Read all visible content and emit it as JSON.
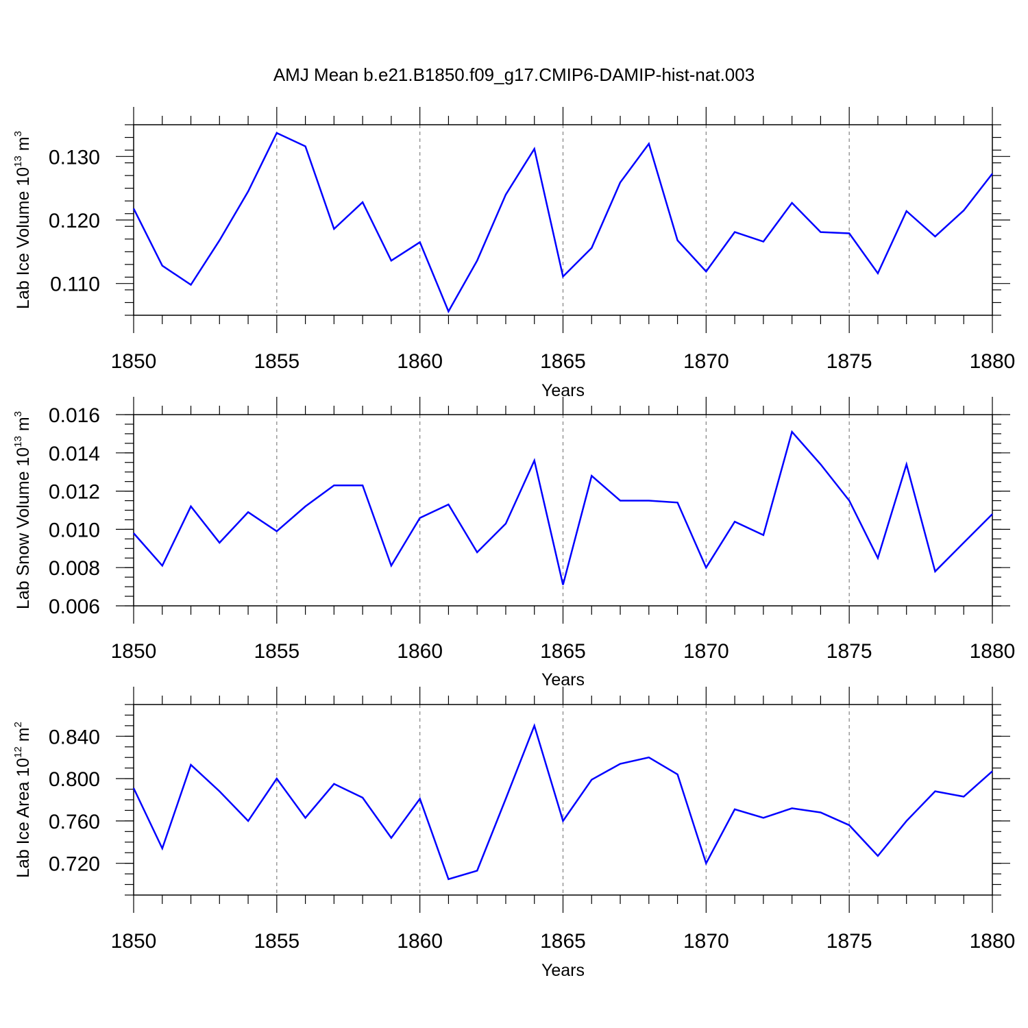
{
  "title": "AMJ Mean b.e21.B1850.f09_g17.CMIP6-DAMIP-hist-nat.003",
  "colors": {
    "line": "#0000ff",
    "axis": "#000000",
    "grid": "#808080"
  },
  "chart_data": [
    {
      "type": "line",
      "ylabel": {
        "text": "Lab Ice Volume 10",
        "sup1": "13",
        "mid": " m",
        "sup2": "3"
      },
      "xlabel": "Years",
      "xlim": [
        1850,
        1880
      ],
      "ylim": [
        0.105,
        0.135
      ],
      "xticks": [
        "1850",
        "1855",
        "1860",
        "1865",
        "1870",
        "1875",
        "1880"
      ],
      "yticks": [
        {
          "value": 0.11,
          "label": "0.110"
        },
        {
          "value": 0.12,
          "label": "0.120"
        },
        {
          "value": 0.13,
          "label": "0.130"
        }
      ],
      "y_minor_step": 0.002,
      "x": [
        1850,
        1851,
        1852,
        1853,
        1854,
        1855,
        1856,
        1857,
        1858,
        1859,
        1860,
        1861,
        1862,
        1863,
        1864,
        1865,
        1866,
        1867,
        1868,
        1869,
        1870,
        1871,
        1872,
        1873,
        1874,
        1875,
        1876,
        1877,
        1878,
        1879,
        1880
      ],
      "series": [
        {
          "name": "Lab Ice Volume",
          "values": [
            0.1218,
            0.1128,
            0.1098,
            0.1168,
            0.1245,
            0.1337,
            0.1316,
            0.1186,
            0.1228,
            0.1136,
            0.1165,
            0.1056,
            0.1136,
            0.124,
            0.1312,
            0.1111,
            0.1156,
            0.1259,
            0.132,
            0.1168,
            0.1119,
            0.1181,
            0.1166,
            0.1227,
            0.1181,
            0.1179,
            0.1116,
            0.1214,
            0.1174,
            0.1215,
            0.1273
          ]
        }
      ]
    },
    {
      "type": "line",
      "ylabel": {
        "text": "Lab Snow Volume 10",
        "sup1": "13",
        "mid": " m",
        "sup2": "3"
      },
      "xlabel": "Years",
      "xlim": [
        1850,
        1880
      ],
      "ylim": [
        0.006,
        0.016
      ],
      "xticks": [
        "1850",
        "1855",
        "1860",
        "1865",
        "1870",
        "1875",
        "1880"
      ],
      "yticks": [
        {
          "value": 0.006,
          "label": "0.006"
        },
        {
          "value": 0.008,
          "label": "0.008"
        },
        {
          "value": 0.01,
          "label": "0.010"
        },
        {
          "value": 0.012,
          "label": "0.012"
        },
        {
          "value": 0.014,
          "label": "0.014"
        },
        {
          "value": 0.016,
          "label": "0.016"
        }
      ],
      "y_minor_step": 0.0005,
      "x": [
        1850,
        1851,
        1852,
        1853,
        1854,
        1855,
        1856,
        1857,
        1858,
        1859,
        1860,
        1861,
        1862,
        1863,
        1864,
        1865,
        1866,
        1867,
        1868,
        1869,
        1870,
        1871,
        1872,
        1873,
        1874,
        1875,
        1876,
        1877,
        1878,
        1879,
        1880
      ],
      "series": [
        {
          "name": "Lab Snow Volume",
          "values": [
            0.0098,
            0.0081,
            0.0112,
            0.0093,
            0.0109,
            0.0099,
            0.0112,
            0.0123,
            0.0123,
            0.0081,
            0.0106,
            0.0113,
            0.0088,
            0.0103,
            0.0136,
            0.0071,
            0.0128,
            0.0115,
            0.0115,
            0.0114,
            0.008,
            0.0104,
            0.0097,
            0.0151,
            0.0134,
            0.0115,
            0.0085,
            0.0134,
            0.0078,
            0.0093,
            0.0108
          ]
        }
      ]
    },
    {
      "type": "line",
      "ylabel": {
        "text": "Lab Ice Area 10",
        "sup1": "12",
        "mid": " m",
        "sup2": "2"
      },
      "xlabel": "Years",
      "xlim": [
        1850,
        1880
      ],
      "ylim": [
        0.69,
        0.87
      ],
      "xticks": [
        "1850",
        "1855",
        "1860",
        "1865",
        "1870",
        "1875",
        "1880"
      ],
      "yticks": [
        {
          "value": 0.72,
          "label": "0.720"
        },
        {
          "value": 0.76,
          "label": "0.760"
        },
        {
          "value": 0.8,
          "label": "0.800"
        },
        {
          "value": 0.84,
          "label": "0.840"
        }
      ],
      "y_minor_step": 0.01,
      "x": [
        1850,
        1851,
        1852,
        1853,
        1854,
        1855,
        1856,
        1857,
        1858,
        1859,
        1860,
        1861,
        1862,
        1863,
        1864,
        1865,
        1866,
        1867,
        1868,
        1869,
        1870,
        1871,
        1872,
        1873,
        1874,
        1875,
        1876,
        1877,
        1878,
        1879,
        1880
      ],
      "series": [
        {
          "name": "Lab Ice Area",
          "values": [
            0.791,
            0.734,
            0.813,
            0.788,
            0.76,
            0.8,
            0.763,
            0.795,
            0.782,
            0.744,
            0.781,
            0.705,
            0.713,
            0.781,
            0.85,
            0.76,
            0.799,
            0.814,
            0.82,
            0.804,
            0.72,
            0.771,
            0.763,
            0.772,
            0.768,
            0.756,
            0.727,
            0.76,
            0.788,
            0.783,
            0.807
          ]
        }
      ]
    }
  ]
}
